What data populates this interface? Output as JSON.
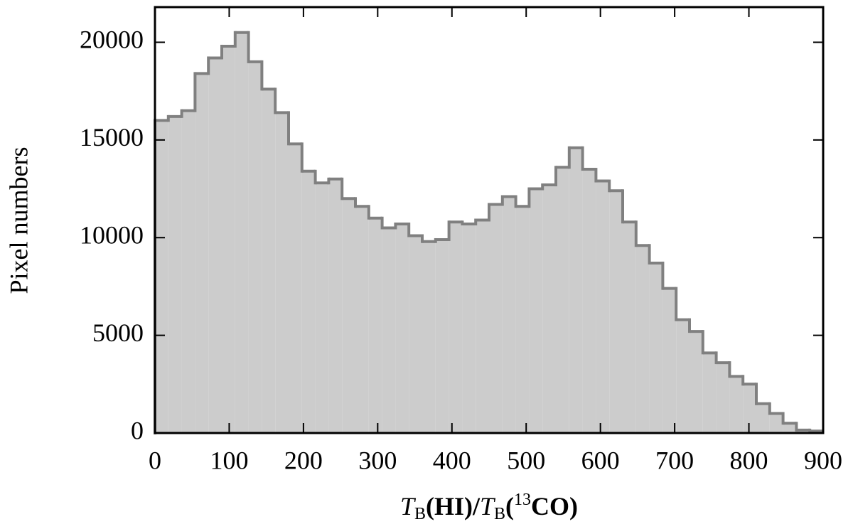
{
  "chart_data": {
    "type": "histogram",
    "xlabel": [
      "T",
      "B",
      "(HI)/",
      "T",
      "B",
      "(",
      "13",
      "CO)"
    ],
    "ylabel": "Pixel numbers",
    "bins": [
      0,
      18,
      36,
      54,
      72,
      90,
      108,
      126,
      144,
      162,
      180,
      198,
      216,
      234,
      252,
      270,
      288,
      306,
      324,
      342,
      360,
      378,
      396,
      414,
      432,
      450,
      468,
      486,
      504,
      522,
      540,
      558,
      576,
      594,
      612,
      630,
      648,
      666,
      684,
      702,
      720,
      738,
      756,
      774,
      792,
      810,
      828,
      846,
      864,
      882,
      900
    ],
    "values": [
      16000,
      16200,
      16500,
      18400,
      19200,
      19800,
      20500,
      19000,
      17600,
      16400,
      14800,
      13400,
      12800,
      13000,
      12000,
      11600,
      11000,
      10500,
      10700,
      10100,
      9800,
      9900,
      10800,
      10700,
      10900,
      11700,
      12100,
      11600,
      12500,
      12700,
      13600,
      14600,
      13500,
      12900,
      12400,
      10800,
      9600,
      8700,
      7400,
      5800,
      5200,
      4100,
      3600,
      2900,
      2500,
      1500,
      1000,
      500,
      150,
      100
    ],
    "color": "#cccccc",
    "edgecolor": "#808080",
    "xlim": [
      0,
      900
    ],
    "xticks": [
      0,
      100,
      200,
      300,
      400,
      500,
      600,
      700,
      800,
      900
    ],
    "ylim": [
      0,
      21800
    ],
    "yticks": [
      0,
      5000,
      10000,
      15000,
      20000
    ]
  }
}
